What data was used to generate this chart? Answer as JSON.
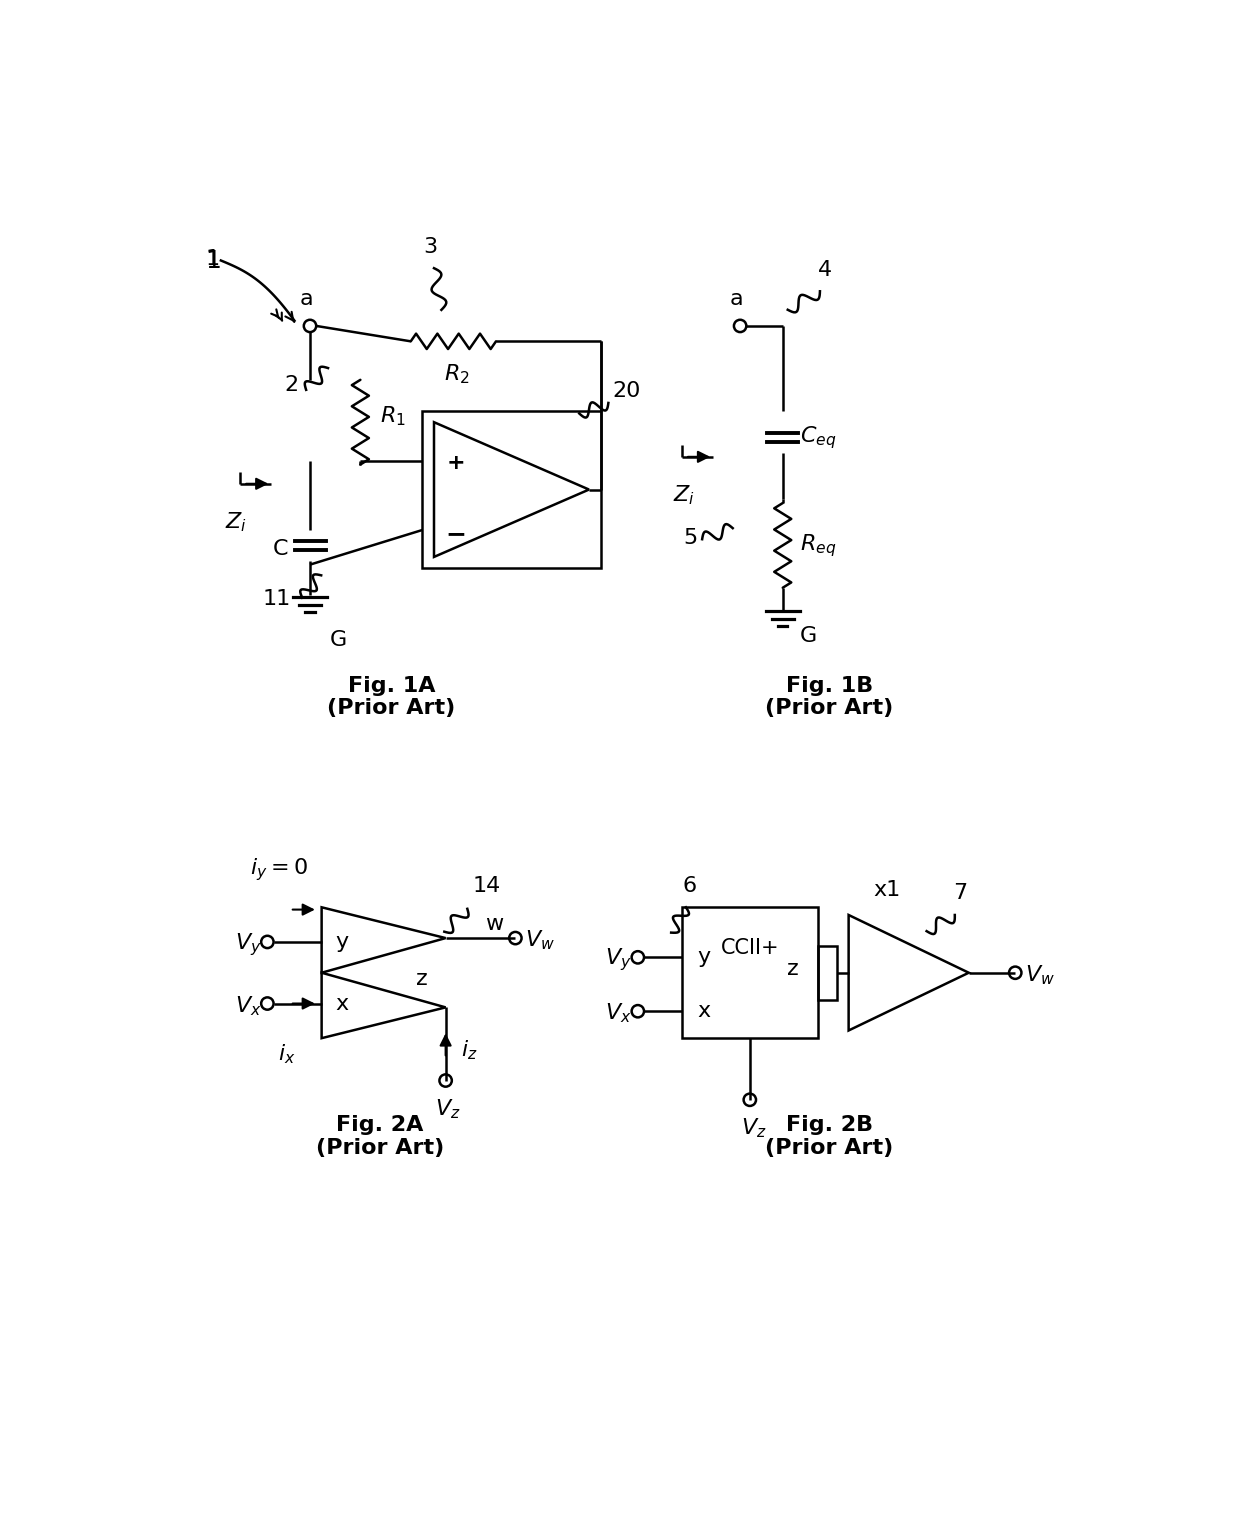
{
  "fig_width": 12.4,
  "fig_height": 15.29,
  "bg_color": "#ffffff",
  "line_color": "#000000",
  "lw": 1.8,
  "fig1a_label": "Fig. 1A",
  "fig1a_sub": "(Prior Art)",
  "fig1b_label": "Fig. 1B",
  "fig1b_sub": "(Prior Art)",
  "fig2a_label": "Fig. 2A",
  "fig2a_sub": "(Prior Art)",
  "fig2b_label": "Fig. 2B",
  "fig2b_sub": "(Prior Art)"
}
